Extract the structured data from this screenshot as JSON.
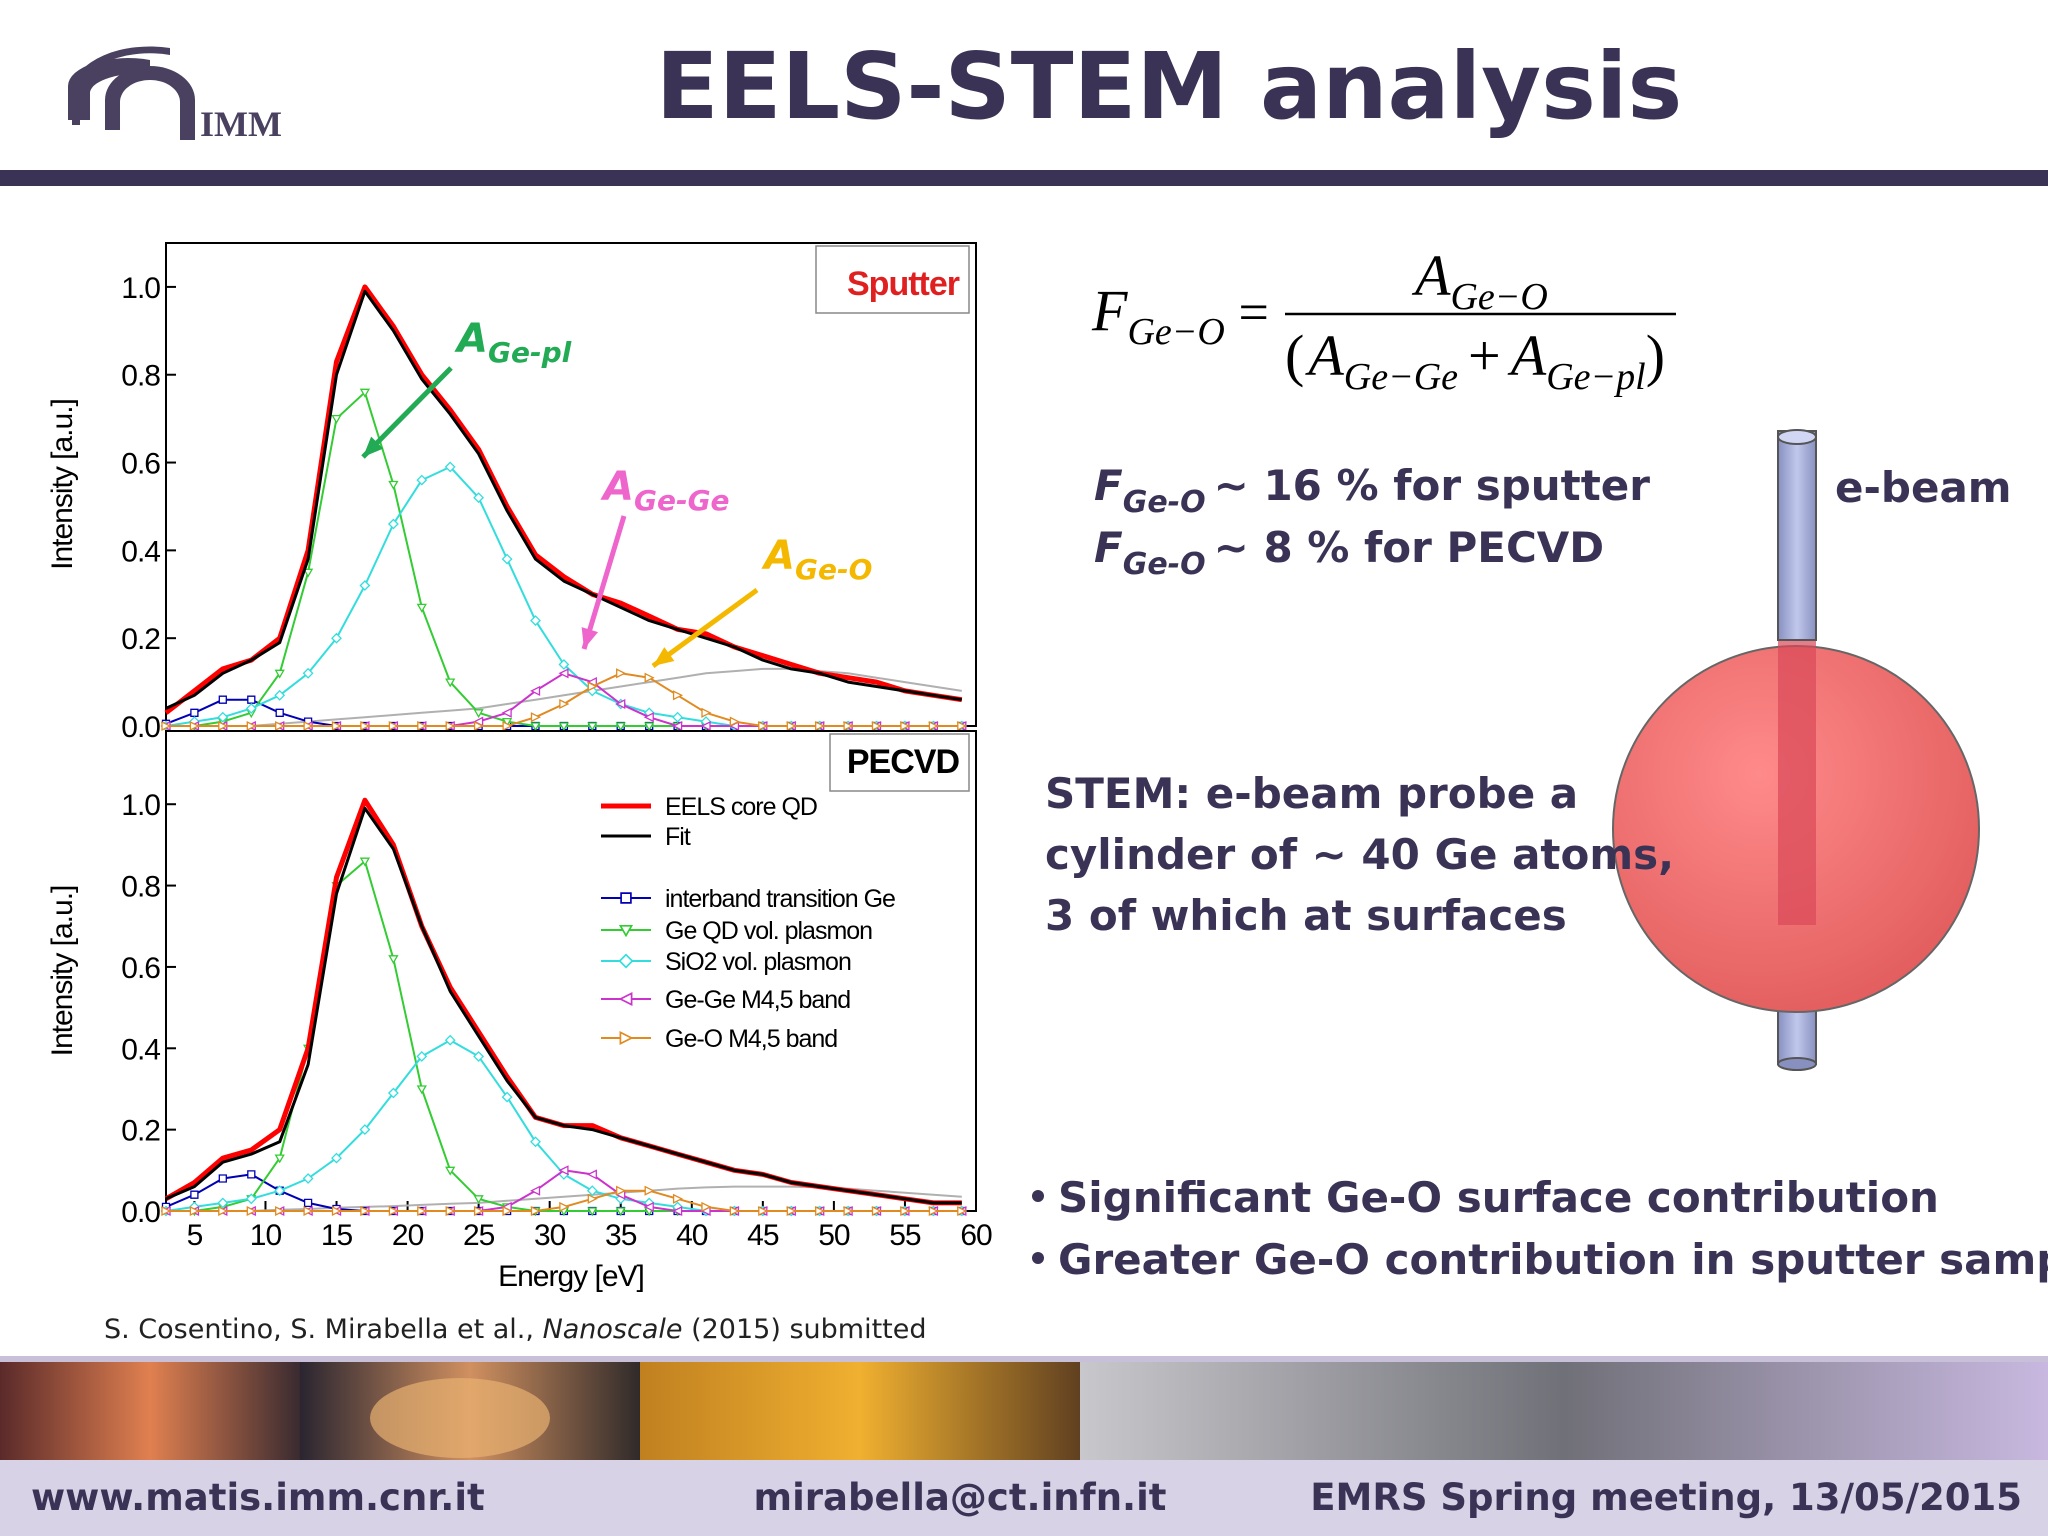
{
  "header": {
    "title": "EELS-STEM analysis",
    "logo_text": "IMM"
  },
  "chart_data": [
    {
      "type": "line",
      "label": "Sputter",
      "ylabel": "Intensity [a.u.]",
      "xlim": [
        3,
        60
      ],
      "ylim": [
        0,
        1.1
      ],
      "yticks": [
        {
          "value": 0,
          "label": "0.0"
        },
        0.2,
        0.4,
        0.6,
        0.8,
        {
          "value": 1,
          "label": "1.0"
        }
      ],
      "x": [
        3,
        5,
        7,
        9,
        11,
        13,
        15,
        17,
        19,
        21,
        23,
        25,
        27,
        29,
        31,
        33,
        35,
        37,
        39,
        41,
        43,
        45,
        47,
        49,
        51,
        53,
        55,
        57,
        59
      ],
      "series": [
        {
          "color": "#b0b0b0",
          "values": [
            0,
            0,
            0,
            0,
            0.005,
            0.01,
            0.015,
            0.02,
            0.025,
            0.03,
            0.035,
            0.04,
            0.05,
            0.06,
            0.07,
            0.08,
            0.09,
            0.1,
            0.11,
            0.12,
            0.125,
            0.13,
            0.13,
            0.125,
            0.12,
            0.11,
            0.1,
            0.09,
            0.08
          ]
        },
        {
          "color": "#0000b4",
          "marker": "square",
          "values": [
            0.005,
            0.03,
            0.06,
            0.06,
            0.03,
            0.01,
            0,
            0,
            0,
            0,
            0,
            0,
            0,
            0,
            0,
            0,
            0,
            0,
            0,
            0,
            0,
            0,
            0,
            0,
            0,
            0,
            0,
            0,
            0
          ]
        },
        {
          "color": "#33cc33",
          "marker": "triangle-down",
          "values": [
            0,
            0,
            0.01,
            0.03,
            0.12,
            0.35,
            0.7,
            0.76,
            0.55,
            0.27,
            0.1,
            0.03,
            0.01,
            0,
            0,
            0,
            0,
            0,
            0,
            0,
            0,
            0,
            0,
            0,
            0,
            0,
            0,
            0,
            0
          ]
        },
        {
          "color": "#33dddd",
          "marker": "diamond",
          "values": [
            0,
            0.01,
            0.02,
            0.04,
            0.07,
            0.12,
            0.2,
            0.32,
            0.46,
            0.56,
            0.59,
            0.52,
            0.38,
            0.24,
            0.14,
            0.08,
            0.05,
            0.03,
            0.02,
            0.01,
            0,
            0,
            0,
            0,
            0,
            0,
            0,
            0,
            0
          ]
        },
        {
          "color": "#cc33cc",
          "marker": "triangle-left",
          "values": [
            0,
            0,
            0,
            0,
            0,
            0,
            0,
            0,
            0,
            0,
            0,
            0.01,
            0.03,
            0.08,
            0.12,
            0.1,
            0.05,
            0.02,
            0,
            0,
            0,
            0,
            0,
            0,
            0,
            0,
            0,
            0,
            0
          ]
        },
        {
          "color": "#e08a20",
          "marker": "triangle-right",
          "values": [
            0,
            0,
            0,
            0,
            0,
            0,
            0,
            0,
            0,
            0,
            0,
            0,
            0,
            0.02,
            0.05,
            0.09,
            0.12,
            0.11,
            0.07,
            0.03,
            0.01,
            0,
            0,
            0,
            0,
            0,
            0,
            0,
            0
          ]
        },
        {
          "color": "#ff0000",
          "width": 5,
          "values": [
            0.03,
            0.08,
            0.13,
            0.15,
            0.2,
            0.4,
            0.83,
            1.0,
            0.91,
            0.8,
            0.72,
            0.63,
            0.5,
            0.39,
            0.34,
            0.3,
            0.28,
            0.25,
            0.22,
            0.21,
            0.18,
            0.16,
            0.14,
            0.12,
            0.11,
            0.1,
            0.08,
            0.07,
            0.06
          ]
        },
        {
          "color": "#000000",
          "width": 3,
          "values": [
            0.04,
            0.07,
            0.12,
            0.15,
            0.19,
            0.38,
            0.8,
            0.99,
            0.9,
            0.79,
            0.71,
            0.62,
            0.49,
            0.38,
            0.33,
            0.3,
            0.27,
            0.24,
            0.22,
            0.2,
            0.18,
            0.15,
            0.13,
            0.12,
            0.1,
            0.09,
            0.08,
            0.07,
            0.06
          ]
        }
      ],
      "annotations": [
        {
          "text": "A",
          "sub": "Ge-pl",
          "color": "#22aa55"
        },
        {
          "text": "A",
          "sub": "Ge-Ge",
          "color": "#ee66cc"
        },
        {
          "text": "A",
          "sub": "Ge-O",
          "color": "#f5b800"
        }
      ]
    },
    {
      "type": "line",
      "label": "PECVD",
      "ylabel": "Intensity [a.u.]",
      "xlabel": "Energy [eV]",
      "xlim": [
        3,
        60
      ],
      "ylim": [
        0,
        1.18
      ],
      "xticks": [
        5,
        10,
        15,
        20,
        25,
        30,
        35,
        40,
        45,
        50,
        55,
        60
      ],
      "yticks": [
        {
          "value": 0,
          "label": "0.0"
        },
        0.2,
        0.4,
        0.6,
        0.8,
        {
          "value": 1,
          "label": "1.0"
        }
      ],
      "legend": "upper right",
      "x": [
        3,
        5,
        7,
        9,
        11,
        13,
        15,
        17,
        19,
        21,
        23,
        25,
        27,
        29,
        31,
        33,
        35,
        37,
        39,
        41,
        43,
        45,
        47,
        49,
        51,
        53,
        55,
        57,
        59
      ],
      "series": [
        {
          "color": "#b0b0b0",
          "values": [
            0,
            0,
            0,
            0,
            0.003,
            0.005,
            0.008,
            0.01,
            0.012,
            0.015,
            0.018,
            0.02,
            0.025,
            0.03,
            0.035,
            0.04,
            0.045,
            0.05,
            0.055,
            0.058,
            0.06,
            0.06,
            0.06,
            0.058,
            0.055,
            0.05,
            0.045,
            0.04,
            0.035
          ]
        },
        {
          "name": "interband transition Ge",
          "color": "#0000b4",
          "marker": "square",
          "values": [
            0.01,
            0.04,
            0.08,
            0.09,
            0.05,
            0.02,
            0.005,
            0,
            0,
            0,
            0,
            0,
            0,
            0,
            0,
            0,
            0,
            0,
            0,
            0,
            0,
            0,
            0,
            0,
            0,
            0,
            0,
            0,
            0
          ]
        },
        {
          "name": "Ge QD vol. plasmon",
          "color": "#33cc33",
          "marker": "triangle-down",
          "values": [
            0,
            0,
            0.01,
            0.03,
            0.13,
            0.4,
            0.8,
            0.86,
            0.62,
            0.3,
            0.1,
            0.03,
            0.01,
            0,
            0,
            0,
            0,
            0,
            0,
            0,
            0,
            0,
            0,
            0,
            0,
            0,
            0,
            0,
            0
          ]
        },
        {
          "name": "SiO2 vol. plasmon",
          "color": "#33dddd",
          "marker": "diamond",
          "values": [
            0,
            0.01,
            0.02,
            0.03,
            0.05,
            0.08,
            0.13,
            0.2,
            0.29,
            0.38,
            0.42,
            0.38,
            0.28,
            0.17,
            0.09,
            0.05,
            0.03,
            0.02,
            0.01,
            0,
            0,
            0,
            0,
            0,
            0,
            0,
            0,
            0,
            0
          ]
        },
        {
          "name": "Ge-Ge M4,5 band",
          "color": "#cc33cc",
          "marker": "triangle-left",
          "values": [
            0,
            0,
            0,
            0,
            0,
            0,
            0,
            0,
            0,
            0,
            0,
            0,
            0.01,
            0.05,
            0.1,
            0.09,
            0.04,
            0.01,
            0,
            0,
            0,
            0,
            0,
            0,
            0,
            0,
            0,
            0,
            0
          ]
        },
        {
          "name": "Ge-O M4,5 band",
          "color": "#e08a20",
          "marker": "triangle-right",
          "values": [
            0,
            0,
            0,
            0,
            0,
            0,
            0,
            0,
            0,
            0,
            0,
            0,
            0,
            0,
            0.01,
            0.03,
            0.05,
            0.05,
            0.03,
            0.01,
            0,
            0,
            0,
            0,
            0,
            0,
            0,
            0,
            0
          ]
        },
        {
          "name": "EELS core QD",
          "color": "#ff0000",
          "width": 5,
          "values": [
            0.03,
            0.07,
            0.13,
            0.15,
            0.2,
            0.4,
            0.82,
            1.01,
            0.9,
            0.7,
            0.55,
            0.44,
            0.33,
            0.23,
            0.21,
            0.21,
            0.18,
            0.16,
            0.14,
            0.12,
            0.1,
            0.09,
            0.07,
            0.06,
            0.05,
            0.04,
            0.03,
            0.02,
            0.02
          ]
        },
        {
          "name": "Fit",
          "color": "#000000",
          "width": 3,
          "values": [
            0.03,
            0.06,
            0.12,
            0.14,
            0.17,
            0.36,
            0.78,
            0.99,
            0.89,
            0.7,
            0.54,
            0.43,
            0.32,
            0.23,
            0.21,
            0.2,
            0.18,
            0.16,
            0.14,
            0.12,
            0.1,
            0.09,
            0.07,
            0.06,
            0.05,
            0.04,
            0.03,
            0.02,
            0.02
          ]
        }
      ]
    }
  ],
  "citation": {
    "authors": "S. Cosentino, S. Mirabella et al., ",
    "journal": "Nanoscale",
    "rest": " (2015) submitted"
  },
  "formula": {
    "lhs": {
      "symbol": "F",
      "sub": "Ge−O"
    },
    "equals": "=",
    "numerator": {
      "symbol": "A",
      "sub": "Ge−O"
    },
    "open": "(",
    "plus": "+",
    "close": ")",
    "denominator": [
      {
        "symbol": "A",
        "sub": "Ge−Ge"
      },
      {
        "symbol": "A",
        "sub": "Ge−pl"
      }
    ]
  },
  "results": [
    {
      "symbol": "F",
      "sub": "Ge-O",
      "text": "~ 16 % for sputter"
    },
    {
      "symbol": "F",
      "sub": "Ge-O",
      "text": "~ 8 % for PECVD"
    }
  ],
  "ebeam_label": "e-beam",
  "stem_text": [
    "STEM: e-beam probe a",
    "cylinder of ~ 40 Ge atoms,",
    "3 of which at surfaces"
  ],
  "bullets": [
    "Significant Ge-O surface contribution",
    "Greater Ge-O contribution in sputter samples"
  ],
  "footer": {
    "left": "www.matis.imm.cnr.it",
    "center": "mirabella@ct.infn.it",
    "right": "EMRS Spring meeting, 13/05/2015"
  }
}
